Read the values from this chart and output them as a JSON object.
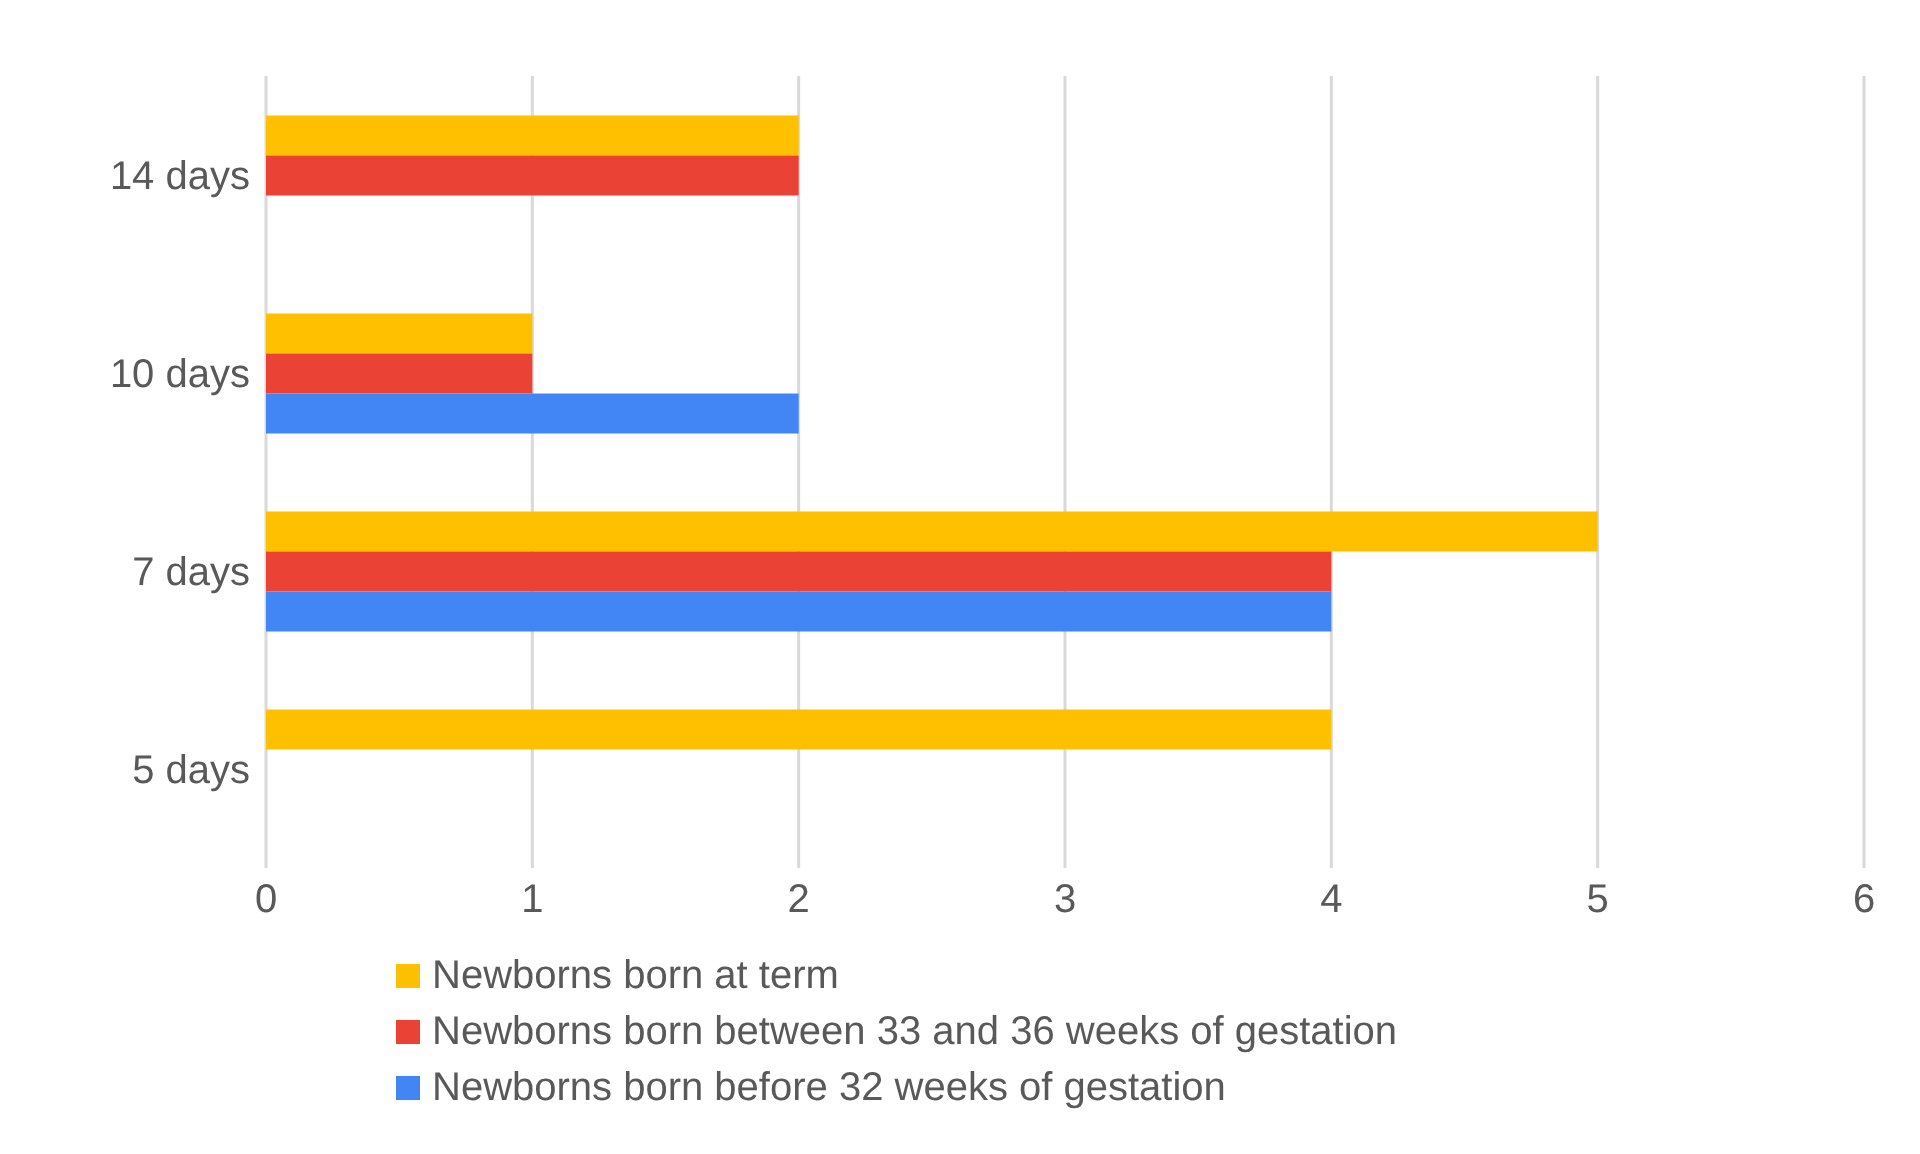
{
  "chart_data": {
    "type": "bar",
    "orientation": "horizontal",
    "categories": [
      "14 days",
      "10 days",
      "7 days",
      "5 days"
    ],
    "series": [
      {
        "name": "Newborns born at term",
        "color": "#ffc000",
        "values": [
          2,
          1,
          5,
          4
        ]
      },
      {
        "name": "Newborns born between 33 and 36 weeks of gestation",
        "color": "#ea4335",
        "values": [
          2,
          1,
          4,
          null
        ]
      },
      {
        "name": "Newborns born before 32 weeks of gestation",
        "color": "#4285f4",
        "values": [
          null,
          2,
          4,
          null
        ]
      }
    ],
    "xlim": [
      0,
      6
    ],
    "xticks": [
      0,
      1,
      2,
      3,
      4,
      5,
      6
    ],
    "grid": "x",
    "legend": "bottom"
  }
}
